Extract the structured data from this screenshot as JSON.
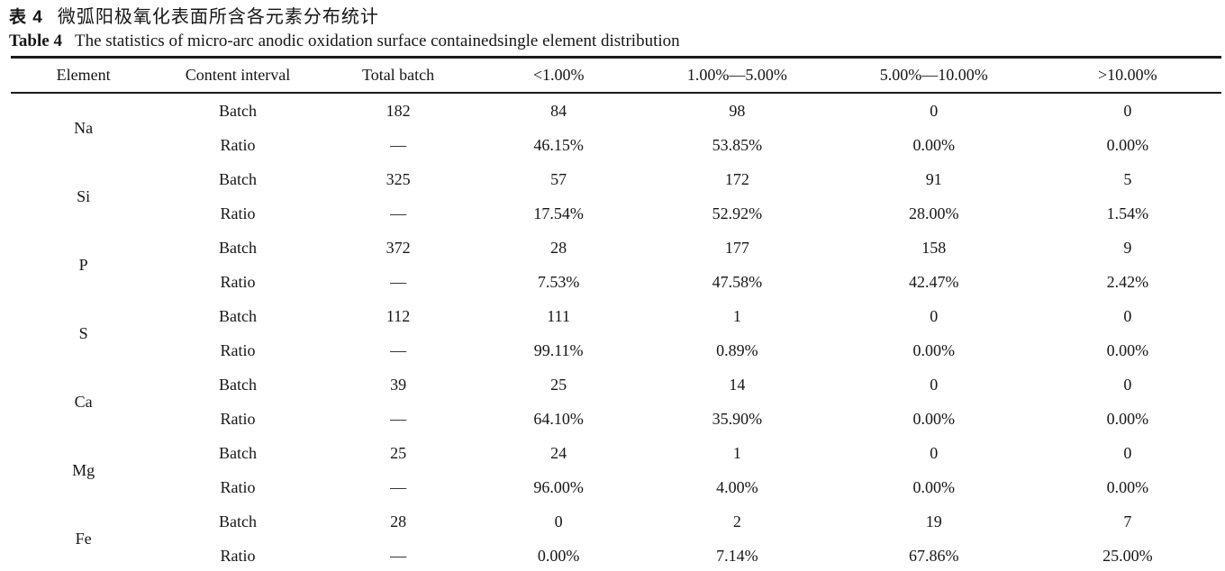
{
  "caption": {
    "zh_label": "表 4",
    "zh_title": "微弧阳极氧化表面所含各元素分布统计",
    "en_label": "Table 4",
    "en_title": "The statistics of micro-arc anodic oxidation surface containedsingle element distribution"
  },
  "table": {
    "headers": [
      "Element",
      "Content interval",
      "Total batch",
      "<1.00%",
      "1.00%—5.00%",
      "5.00%—10.00%",
      ">10.00%"
    ],
    "row_labels": {
      "batch": "Batch",
      "ratio": "Ratio"
    },
    "elements": [
      {
        "symbol": "Na",
        "batch": [
          "182",
          "84",
          "98",
          "0",
          "0"
        ],
        "ratio": [
          "—",
          "46.15%",
          "53.85%",
          "0.00%",
          "0.00%"
        ]
      },
      {
        "symbol": "Si",
        "batch": [
          "325",
          "57",
          "172",
          "91",
          "5"
        ],
        "ratio": [
          "—",
          "17.54%",
          "52.92%",
          "28.00%",
          "1.54%"
        ]
      },
      {
        "symbol": "P",
        "batch": [
          "372",
          "28",
          "177",
          "158",
          "9"
        ],
        "ratio": [
          "—",
          "7.53%",
          "47.58%",
          "42.47%",
          "2.42%"
        ]
      },
      {
        "symbol": "S",
        "batch": [
          "112",
          "111",
          "1",
          "0",
          "0"
        ],
        "ratio": [
          "—",
          "99.11%",
          "0.89%",
          "0.00%",
          "0.00%"
        ]
      },
      {
        "symbol": "Ca",
        "batch": [
          "39",
          "25",
          "14",
          "0",
          "0"
        ],
        "ratio": [
          "—",
          "64.10%",
          "35.90%",
          "0.00%",
          "0.00%"
        ]
      },
      {
        "symbol": "Mg",
        "batch": [
          "25",
          "24",
          "1",
          "0",
          "0"
        ],
        "ratio": [
          "—",
          "96.00%",
          "4.00%",
          "0.00%",
          "0.00%"
        ]
      },
      {
        "symbol": "Fe",
        "batch": [
          "28",
          "0",
          "2",
          "19",
          "7"
        ],
        "ratio": [
          "—",
          "0.00%",
          "7.14%",
          "67.86%",
          "25.00%"
        ]
      }
    ]
  },
  "chart_data": {
    "type": "table",
    "title": "表 4 微弧阳极氧化表面所含各元素分布统计 / Table 4 The statistics of micro-arc anodic oxidation surface containedsingle element distribution",
    "columns": [
      "Element",
      "Content interval",
      "Total batch",
      "<1.00%",
      "1.00%—5.00%",
      "5.00%—10.00%",
      ">10.00%"
    ],
    "rows": [
      [
        "Na",
        "Batch",
        "182",
        "84",
        "98",
        "0",
        "0"
      ],
      [
        "Na",
        "Ratio",
        "—",
        "46.15%",
        "53.85%",
        "0.00%",
        "0.00%"
      ],
      [
        "Si",
        "Batch",
        "325",
        "57",
        "172",
        "91",
        "5"
      ],
      [
        "Si",
        "Ratio",
        "—",
        "17.54%",
        "52.92%",
        "28.00%",
        "1.54%"
      ],
      [
        "P",
        "Batch",
        "372",
        "28",
        "177",
        "158",
        "9"
      ],
      [
        "P",
        "Ratio",
        "—",
        "7.53%",
        "47.58%",
        "42.47%",
        "2.42%"
      ],
      [
        "S",
        "Batch",
        "112",
        "111",
        "1",
        "0",
        "0"
      ],
      [
        "S",
        "Ratio",
        "—",
        "99.11%",
        "0.89%",
        "0.00%",
        "0.00%"
      ],
      [
        "Ca",
        "Batch",
        "39",
        "25",
        "14",
        "0",
        "0"
      ],
      [
        "Ca",
        "Ratio",
        "—",
        "64.10%",
        "35.90%",
        "0.00%",
        "0.00%"
      ],
      [
        "Mg",
        "Batch",
        "25",
        "24",
        "1",
        "0",
        "0"
      ],
      [
        "Mg",
        "Ratio",
        "—",
        "96.00%",
        "4.00%",
        "0.00%",
        "0.00%"
      ],
      [
        "Fe",
        "Batch",
        "28",
        "0",
        "2",
        "19",
        "7"
      ],
      [
        "Fe",
        "Ratio",
        "—",
        "0.00%",
        "7.14%",
        "67.86%",
        "25.00%"
      ]
    ]
  },
  "colors": {
    "background": "#ffffff",
    "text": "#161616",
    "rule": "#1b1b1b"
  }
}
